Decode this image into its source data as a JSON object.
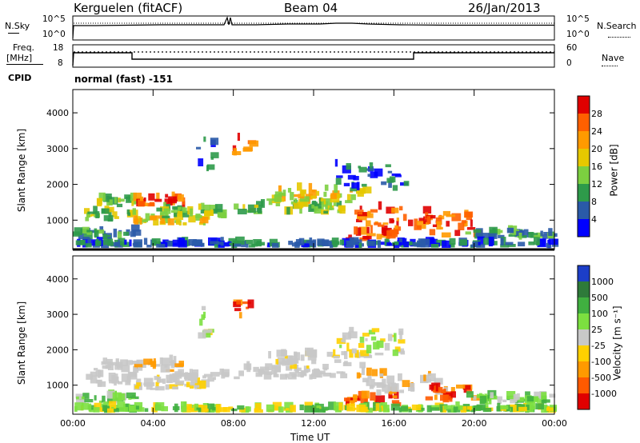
{
  "header": {
    "station": "Kerguelen (fitACF)",
    "beam": "Beam 04",
    "date": "26/Jan/2013"
  },
  "noise_panel": {
    "left_label": "N.Sky",
    "right_label": "N.Search",
    "ticks": [
      "10^5",
      "10^0"
    ]
  },
  "freq_panel": {
    "left_label_1": "Freq.",
    "left_label_2": "[MHz]",
    "left_ticks": [
      "18",
      "8"
    ],
    "right_label": "Nave",
    "right_ticks": [
      "60",
      "0"
    ]
  },
  "cpid": {
    "label": "CPID",
    "value": "normal (fast) -151"
  },
  "chart_data": [
    {
      "type": "heatmap",
      "name": "power",
      "ylabel": "Slant Range [km]",
      "y_ticks": [
        1000,
        2000,
        3000,
        4000
      ],
      "colorbar_label": "Power [dB]",
      "colorbar_ticks": [
        "28",
        "24",
        "20",
        "16",
        "12",
        "8",
        "4"
      ],
      "colors": [
        "#e00000",
        "#ff6000",
        "#ff9a00",
        "#e6c800",
        "#7ccf40",
        "#2e9a4a",
        "#2a5aa8",
        "#0000ff"
      ],
      "x_ticks": [
        "00:00",
        "04:00",
        "08:00",
        "12:00",
        "16:00",
        "20:00",
        "00:00"
      ]
    },
    {
      "type": "heatmap",
      "name": "velocity",
      "ylabel": "Slant Range [km]",
      "y_ticks": [
        1000,
        2000,
        3000,
        4000
      ],
      "colorbar_label": "Velocity [m s⁻¹]",
      "colorbar_ticks": [
        "1000",
        "500",
        "100",
        "25",
        "-25",
        "-100",
        "-500",
        "-1000"
      ],
      "colors": [
        "#1c3ec8",
        "#2e7a3a",
        "#40b040",
        "#7ce040",
        "#c8c8c8",
        "#ffd000",
        "#ff9a00",
        "#ff5a00",
        "#e00000"
      ],
      "x_ticks": [
        "00:00",
        "04:00",
        "08:00",
        "12:00",
        "16:00",
        "20:00",
        "00:00"
      ],
      "xlabel": "Time UT"
    }
  ]
}
